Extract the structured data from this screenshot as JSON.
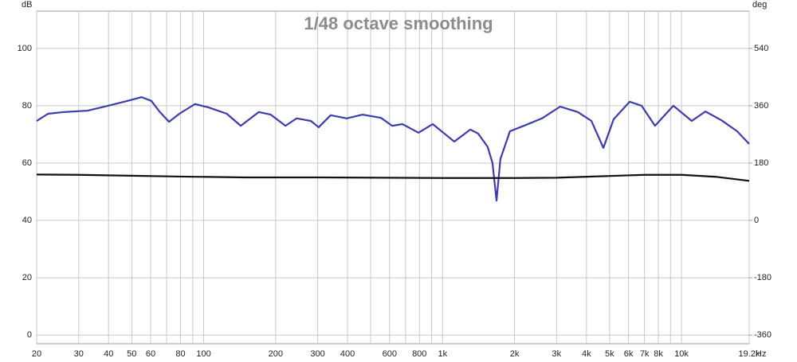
{
  "chart_data": {
    "type": "line",
    "title": "1/48 octave smoothing",
    "y_label": "dB",
    "y2_label": "deg",
    "x_label": "Hz",
    "log_x": true,
    "grid": true,
    "xlim": [
      20,
      19200
    ],
    "xticks": [
      20,
      30,
      40,
      50,
      60,
      80,
      100,
      200,
      300,
      400,
      600,
      800,
      {
        "value": 1000,
        "label": "1k"
      },
      {
        "value": 2000,
        "label": "2k"
      },
      {
        "value": 3000,
        "label": "3k"
      },
      {
        "value": 4000,
        "label": "4k"
      },
      {
        "value": 5000,
        "label": "5k"
      },
      {
        "value": 6000,
        "label": "6k"
      },
      {
        "value": 7000,
        "label": "7k"
      },
      {
        "value": 8000,
        "label": "8k"
      },
      {
        "value": 10000,
        "label": "10k"
      },
      {
        "value": 19200,
        "label": "19.2k"
      }
    ],
    "x_minor_grid": [
      70,
      90,
      500,
      700,
      900,
      9000
    ],
    "ylim": [
      -3,
      113
    ],
    "yticks": [
      0,
      20,
      40,
      60,
      80,
      100
    ],
    "y2lim": [
      -387,
      657
    ],
    "y2ticks": [
      -360,
      -180,
      0,
      180,
      360,
      540
    ],
    "series": [
      {
        "color": "#3c3cae",
        "x": [
          20,
          22.3,
          26,
          32.7,
          41.2,
          48,
          55,
          60.4,
          65.3,
          71.6,
          79.1,
          92,
          105,
          125,
          143,
          170,
          191,
          220,
          245,
          281,
          303,
          340,
          397,
          462,
          552,
          615,
          679,
          793,
          910,
          1119,
          1306,
          1409,
          1545,
          1618,
          1682,
          1746,
          1914,
          2233,
          2606,
          3106,
          3681,
          4198,
          4710,
          5200,
          6068,
          6808,
          7748,
          9247,
          11040,
          12590,
          14660,
          17100,
          19200
        ],
        "values": [
          74.7,
          77.2,
          77.8,
          78.3,
          80.3,
          81.7,
          83,
          81.7,
          78,
          74.4,
          77.2,
          80.6,
          79.4,
          77.2,
          73,
          77.8,
          76.9,
          73,
          75.6,
          74.7,
          72.5,
          76.7,
          75.6,
          76.9,
          75.8,
          73,
          73.6,
          70.6,
          73.6,
          67.5,
          71.7,
          70.3,
          65.6,
          60,
          46.9,
          61.4,
          71.1,
          73.3,
          75.6,
          79.7,
          77.8,
          74.7,
          65.3,
          75.3,
          81.4,
          80,
          73,
          80,
          74.7,
          78,
          75,
          71.1,
          66.7
        ]
      },
      {
        "color": "#111111",
        "x": [
          20,
          30,
          50,
          80,
          150,
          300,
          1000,
          2000,
          3000,
          5000,
          7000,
          10000,
          14000,
          19200
        ],
        "values": [
          56,
          55.9,
          55.6,
          55.3,
          55,
          55,
          54.8,
          54.8,
          54.9,
          55.5,
          55.9,
          55.9,
          55.2,
          53.8
        ]
      }
    ]
  }
}
